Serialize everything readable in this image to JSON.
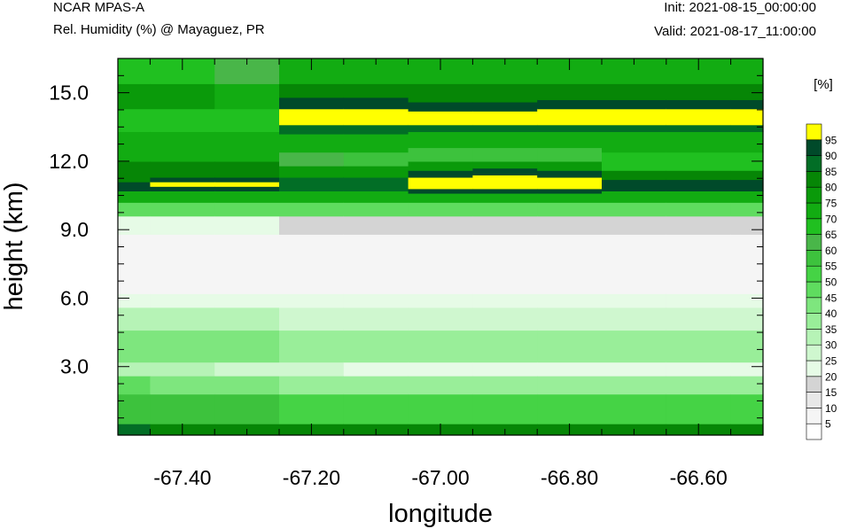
{
  "header": {
    "model": "NCAR MPAS-A",
    "field": "Rel. Humidity (%) @ Mayaguez, PR",
    "init": "Init: 2021-08-15_00:00:00",
    "valid": "Valid: 2021-08-17_11:00:00"
  },
  "chart_data": {
    "type": "heatmap",
    "title": "Rel. Humidity (%) @ Mayaguez, PR",
    "xlabel": "longitude",
    "ylabel": "height (km)",
    "xlim": [
      -67.5,
      -66.5
    ],
    "ylim": [
      0.0,
      16.5
    ],
    "x_ticks": [
      -67.4,
      -67.2,
      -67.0,
      -66.8,
      -66.6
    ],
    "x_tick_labels": [
      "-67.40",
      "-67.20",
      "-67.00",
      "-66.80",
      "-66.60"
    ],
    "y_ticks": [
      3.0,
      6.0,
      9.0,
      12.0,
      15.0
    ],
    "y_tick_labels": [
      "3.0",
      "6.0",
      "9.0",
      "12.0",
      "15.0"
    ],
    "colorbar": {
      "unit": "[%]",
      "levels": [
        5,
        10,
        15,
        20,
        25,
        30,
        35,
        40,
        45,
        50,
        55,
        60,
        65,
        70,
        75,
        80,
        85,
        90,
        95
      ],
      "labels": [
        "5",
        "10",
        "15",
        "20",
        "25",
        "30",
        "35",
        "40",
        "45",
        "50",
        "55",
        "60",
        "65",
        "70",
        "75",
        "80",
        "85",
        "90",
        "95"
      ],
      "colors": [
        "#ffffff",
        "#f5f5f5",
        "#e8e8e8",
        "#d4d4d4",
        "#e6fbe6",
        "#cff7cf",
        "#b6f3b6",
        "#99ee99",
        "#7ee67e",
        "#5fdc5f",
        "#45d345",
        "#3dc23d",
        "#49b649",
        "#20c020",
        "#12ac12",
        "#0a9a0a",
        "#068606",
        "#026e26",
        "#004a2a",
        "#ffff00"
      ]
    },
    "profiles": [
      {
        "x": -67.5,
        "rows": [
          [
            0.0,
            0.5,
            85
          ],
          [
            0.5,
            1.8,
            55
          ],
          [
            1.8,
            2.6,
            45
          ],
          [
            2.6,
            3.2,
            30
          ],
          [
            3.2,
            4.6,
            40
          ],
          [
            4.6,
            5.6,
            30
          ],
          [
            5.6,
            6.2,
            20
          ],
          [
            6.2,
            8.8,
            5
          ],
          [
            8.8,
            9.6,
            20
          ],
          [
            9.6,
            10.2,
            45
          ],
          [
            10.2,
            10.7,
            70
          ],
          [
            10.7,
            11.1,
            90
          ],
          [
            11.1,
            12.0,
            80
          ],
          [
            12.0,
            13.3,
            70
          ],
          [
            13.3,
            14.3,
            65
          ],
          [
            14.3,
            15.4,
            75
          ],
          [
            15.4,
            16.5,
            65
          ]
        ]
      },
      {
        "x": -67.4,
        "rows": [
          [
            0.0,
            0.5,
            80
          ],
          [
            0.5,
            1.8,
            55
          ],
          [
            1.8,
            2.6,
            40
          ],
          [
            2.6,
            3.2,
            30
          ],
          [
            3.2,
            4.6,
            40
          ],
          [
            4.6,
            5.6,
            30
          ],
          [
            5.6,
            6.2,
            20
          ],
          [
            6.2,
            8.8,
            5
          ],
          [
            8.8,
            9.6,
            20
          ],
          [
            9.6,
            10.2,
            45
          ],
          [
            10.2,
            10.7,
            70
          ],
          [
            10.7,
            10.9,
            90
          ],
          [
            10.9,
            11.1,
            95
          ],
          [
            11.1,
            11.3,
            90
          ],
          [
            11.3,
            12.0,
            80
          ],
          [
            12.0,
            13.3,
            70
          ],
          [
            13.3,
            14.3,
            65
          ],
          [
            14.3,
            15.4,
            75
          ],
          [
            15.4,
            16.5,
            65
          ]
        ]
      },
      {
        "x": -67.3,
        "rows": [
          [
            0.0,
            0.5,
            80
          ],
          [
            0.5,
            1.8,
            55
          ],
          [
            1.8,
            2.6,
            40
          ],
          [
            2.6,
            3.2,
            25
          ],
          [
            3.2,
            4.6,
            40
          ],
          [
            4.6,
            5.6,
            30
          ],
          [
            5.6,
            6.2,
            20
          ],
          [
            6.2,
            8.8,
            5
          ],
          [
            8.8,
            9.6,
            20
          ],
          [
            9.6,
            10.2,
            45
          ],
          [
            10.2,
            10.7,
            70
          ],
          [
            10.7,
            10.9,
            90
          ],
          [
            10.9,
            11.1,
            95
          ],
          [
            11.1,
            11.3,
            90
          ],
          [
            11.3,
            12.0,
            80
          ],
          [
            12.0,
            13.3,
            70
          ],
          [
            13.3,
            14.3,
            65
          ],
          [
            14.3,
            15.4,
            70
          ],
          [
            15.4,
            16.5,
            60
          ]
        ]
      },
      {
        "x": -67.2,
        "rows": [
          [
            0.0,
            0.5,
            80
          ],
          [
            0.5,
            1.8,
            50
          ],
          [
            1.8,
            2.6,
            35
          ],
          [
            2.6,
            3.2,
            25
          ],
          [
            3.2,
            4.6,
            35
          ],
          [
            4.6,
            5.6,
            25
          ],
          [
            5.6,
            6.2,
            20
          ],
          [
            6.2,
            8.8,
            5
          ],
          [
            8.8,
            9.6,
            15
          ],
          [
            9.6,
            10.2,
            45
          ],
          [
            10.2,
            10.7,
            70
          ],
          [
            10.7,
            11.3,
            85
          ],
          [
            11.3,
            11.8,
            75
          ],
          [
            11.8,
            12.4,
            60
          ],
          [
            12.4,
            13.2,
            70
          ],
          [
            13.2,
            13.6,
            85
          ],
          [
            13.6,
            14.3,
            95
          ],
          [
            14.3,
            14.8,
            90
          ],
          [
            14.8,
            15.4,
            80
          ],
          [
            15.4,
            16.5,
            70
          ]
        ]
      },
      {
        "x": -67.1,
        "rows": [
          [
            0.0,
            0.5,
            80
          ],
          [
            0.5,
            1.8,
            50
          ],
          [
            1.8,
            2.6,
            35
          ],
          [
            2.6,
            3.2,
            20
          ],
          [
            3.2,
            4.6,
            35
          ],
          [
            4.6,
            5.6,
            25
          ],
          [
            5.6,
            6.2,
            20
          ],
          [
            6.2,
            8.8,
            5
          ],
          [
            8.8,
            9.6,
            15
          ],
          [
            9.6,
            10.2,
            45
          ],
          [
            10.2,
            10.7,
            70
          ],
          [
            10.7,
            11.3,
            85
          ],
          [
            11.3,
            11.8,
            75
          ],
          [
            11.8,
            12.4,
            55
          ],
          [
            12.4,
            13.2,
            70
          ],
          [
            13.2,
            13.6,
            85
          ],
          [
            13.6,
            14.3,
            95
          ],
          [
            14.3,
            14.8,
            90
          ],
          [
            14.8,
            15.4,
            80
          ],
          [
            15.4,
            16.5,
            70
          ]
        ]
      },
      {
        "x": -67.0,
        "rows": [
          [
            0.0,
            0.5,
            80
          ],
          [
            0.5,
            1.8,
            50
          ],
          [
            1.8,
            2.6,
            35
          ],
          [
            2.6,
            3.2,
            20
          ],
          [
            3.2,
            4.6,
            35
          ],
          [
            4.6,
            5.6,
            25
          ],
          [
            5.6,
            6.2,
            20
          ],
          [
            6.2,
            8.8,
            5
          ],
          [
            8.8,
            9.6,
            15
          ],
          [
            9.6,
            10.2,
            45
          ],
          [
            10.2,
            10.6,
            70
          ],
          [
            10.6,
            10.8,
            90
          ],
          [
            10.8,
            11.3,
            95
          ],
          [
            11.3,
            11.6,
            90
          ],
          [
            11.6,
            12.0,
            75
          ],
          [
            12.0,
            12.6,
            55
          ],
          [
            12.6,
            13.3,
            70
          ],
          [
            13.3,
            13.6,
            85
          ],
          [
            13.6,
            14.2,
            95
          ],
          [
            14.2,
            14.6,
            90
          ],
          [
            14.6,
            15.4,
            80
          ],
          [
            15.4,
            16.5,
            70
          ]
        ]
      },
      {
        "x": -66.9,
        "rows": [
          [
            0.0,
            0.5,
            80
          ],
          [
            0.5,
            1.8,
            50
          ],
          [
            1.8,
            2.6,
            35
          ],
          [
            2.6,
            3.2,
            20
          ],
          [
            3.2,
            4.6,
            35
          ],
          [
            4.6,
            5.6,
            25
          ],
          [
            5.6,
            6.2,
            20
          ],
          [
            6.2,
            8.8,
            5
          ],
          [
            8.8,
            9.6,
            15
          ],
          [
            9.6,
            10.2,
            45
          ],
          [
            10.2,
            10.6,
            70
          ],
          [
            10.6,
            10.8,
            90
          ],
          [
            10.8,
            11.4,
            95
          ],
          [
            11.4,
            11.7,
            90
          ],
          [
            11.7,
            12.0,
            75
          ],
          [
            12.0,
            12.6,
            55
          ],
          [
            12.6,
            13.3,
            70
          ],
          [
            13.3,
            13.6,
            85
          ],
          [
            13.6,
            14.2,
            95
          ],
          [
            14.2,
            14.6,
            90
          ],
          [
            14.6,
            15.4,
            80
          ],
          [
            15.4,
            16.5,
            70
          ]
        ]
      },
      {
        "x": -66.8,
        "rows": [
          [
            0.0,
            0.5,
            80
          ],
          [
            0.5,
            1.8,
            50
          ],
          [
            1.8,
            2.6,
            35
          ],
          [
            2.6,
            3.2,
            20
          ],
          [
            3.2,
            4.6,
            35
          ],
          [
            4.6,
            5.6,
            25
          ],
          [
            5.6,
            6.2,
            20
          ],
          [
            6.2,
            8.8,
            5
          ],
          [
            8.8,
            9.6,
            15
          ],
          [
            9.6,
            10.2,
            45
          ],
          [
            10.2,
            10.6,
            70
          ],
          [
            10.6,
            10.8,
            90
          ],
          [
            10.8,
            11.3,
            95
          ],
          [
            11.3,
            11.6,
            90
          ],
          [
            11.6,
            12.0,
            75
          ],
          [
            12.0,
            12.6,
            55
          ],
          [
            12.6,
            13.3,
            70
          ],
          [
            13.3,
            13.6,
            85
          ],
          [
            13.6,
            14.3,
            95
          ],
          [
            14.3,
            14.7,
            90
          ],
          [
            14.7,
            15.4,
            80
          ],
          [
            15.4,
            16.5,
            70
          ]
        ]
      },
      {
        "x": -66.7,
        "rows": [
          [
            0.0,
            0.5,
            80
          ],
          [
            0.5,
            1.8,
            50
          ],
          [
            1.8,
            2.6,
            35
          ],
          [
            2.6,
            3.2,
            20
          ],
          [
            3.2,
            4.6,
            35
          ],
          [
            4.6,
            5.6,
            25
          ],
          [
            5.6,
            6.2,
            20
          ],
          [
            6.2,
            8.8,
            5
          ],
          [
            8.8,
            9.6,
            15
          ],
          [
            9.6,
            10.2,
            45
          ],
          [
            10.2,
            10.7,
            70
          ],
          [
            10.7,
            11.2,
            90
          ],
          [
            11.2,
            11.6,
            80
          ],
          [
            11.6,
            12.4,
            65
          ],
          [
            12.4,
            13.3,
            70
          ],
          [
            13.3,
            13.6,
            85
          ],
          [
            13.6,
            14.3,
            95
          ],
          [
            14.3,
            14.7,
            90
          ],
          [
            14.7,
            15.4,
            80
          ],
          [
            15.4,
            16.5,
            70
          ]
        ]
      },
      {
        "x": -66.6,
        "rows": [
          [
            0.0,
            0.5,
            80
          ],
          [
            0.5,
            1.8,
            50
          ],
          [
            1.8,
            2.6,
            35
          ],
          [
            2.6,
            3.2,
            20
          ],
          [
            3.2,
            4.6,
            35
          ],
          [
            4.6,
            5.6,
            25
          ],
          [
            5.6,
            6.2,
            20
          ],
          [
            6.2,
            8.8,
            5
          ],
          [
            8.8,
            9.6,
            15
          ],
          [
            9.6,
            10.2,
            45
          ],
          [
            10.2,
            10.7,
            70
          ],
          [
            10.7,
            11.2,
            90
          ],
          [
            11.2,
            11.6,
            80
          ],
          [
            11.6,
            12.4,
            65
          ],
          [
            12.4,
            13.3,
            70
          ],
          [
            13.3,
            13.6,
            85
          ],
          [
            13.6,
            14.3,
            95
          ],
          [
            14.3,
            14.7,
            90
          ],
          [
            14.7,
            15.4,
            80
          ],
          [
            15.4,
            16.5,
            70
          ]
        ]
      },
      {
        "x": -66.5,
        "rows": [
          [
            0.0,
            0.5,
            80
          ],
          [
            0.5,
            1.8,
            50
          ],
          [
            1.8,
            2.6,
            35
          ],
          [
            2.6,
            3.2,
            20
          ],
          [
            3.2,
            4.6,
            35
          ],
          [
            4.6,
            5.6,
            25
          ],
          [
            5.6,
            6.2,
            20
          ],
          [
            6.2,
            8.8,
            5
          ],
          [
            8.8,
            9.6,
            15
          ],
          [
            9.6,
            10.2,
            45
          ],
          [
            10.2,
            10.7,
            70
          ],
          [
            10.7,
            11.2,
            90
          ],
          [
            11.2,
            11.6,
            80
          ],
          [
            11.6,
            12.4,
            65
          ],
          [
            12.4,
            13.3,
            70
          ],
          [
            13.3,
            13.6,
            85
          ],
          [
            13.6,
            14.3,
            95
          ],
          [
            14.3,
            14.7,
            90
          ],
          [
            14.7,
            15.4,
            80
          ],
          [
            15.4,
            16.5,
            70
          ]
        ]
      }
    ]
  }
}
